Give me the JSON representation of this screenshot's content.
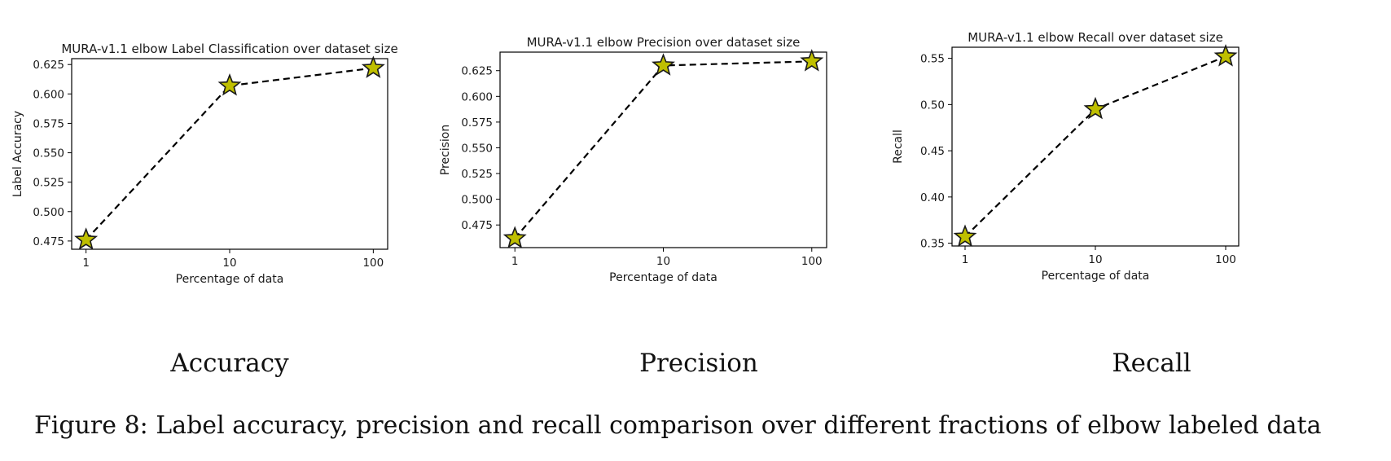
{
  "chart_data": [
    {
      "type": "line",
      "title": "MURA-v1.1 elbow Label Classification over dataset size",
      "xlabel": "Percentage of data",
      "ylabel": "Label Accuracy",
      "x_scale": "log",
      "x": [
        1,
        10,
        100
      ],
      "x_ticks": [
        "1",
        "10",
        "100"
      ],
      "y_ticks": [
        "0.475",
        "0.500",
        "0.525",
        "0.550",
        "0.575",
        "0.600",
        "0.625"
      ],
      "ylim": [
        0.468,
        0.63
      ],
      "series": [
        {
          "values": [
            0.476,
            0.607,
            0.622
          ]
        }
      ],
      "marker": "star",
      "marker_color": "#bfbf00",
      "line_style": "dashed",
      "line_color": "#000000"
    },
    {
      "type": "line",
      "title": "MURA-v1.1 elbow Precision over dataset size",
      "xlabel": "Percentage of data",
      "ylabel": "Precision",
      "x_scale": "log",
      "x": [
        1,
        10,
        100
      ],
      "x_ticks": [
        "1",
        "10",
        "100"
      ],
      "y_ticks": [
        "0.475",
        "0.500",
        "0.525",
        "0.550",
        "0.575",
        "0.600",
        "0.625"
      ],
      "ylim": [
        0.453,
        0.643
      ],
      "series": [
        {
          "values": [
            0.462,
            0.63,
            0.634
          ]
        }
      ],
      "marker": "star",
      "marker_color": "#bfbf00",
      "line_style": "dashed",
      "line_color": "#000000"
    },
    {
      "type": "line",
      "title": "MURA-v1.1 elbow Recall over dataset size",
      "xlabel": "Percentage of data",
      "ylabel": "Recall",
      "x_scale": "log",
      "x": [
        1,
        10,
        100
      ],
      "x_ticks": [
        "1",
        "10",
        "100"
      ],
      "y_ticks": [
        "0.35",
        "0.40",
        "0.45",
        "0.50",
        "0.55"
      ],
      "ylim": [
        0.347,
        0.562
      ],
      "series": [
        {
          "values": [
            0.357,
            0.495,
            0.552
          ]
        }
      ],
      "marker": "star",
      "marker_color": "#bfbf00",
      "line_style": "dashed",
      "line_color": "#000000"
    }
  ],
  "subcaptions": [
    "Accuracy",
    "Precision",
    "Recall"
  ],
  "caption": "Figure 8: Label accuracy, precision and recall comparison over different fractions of elbow labeled data"
}
